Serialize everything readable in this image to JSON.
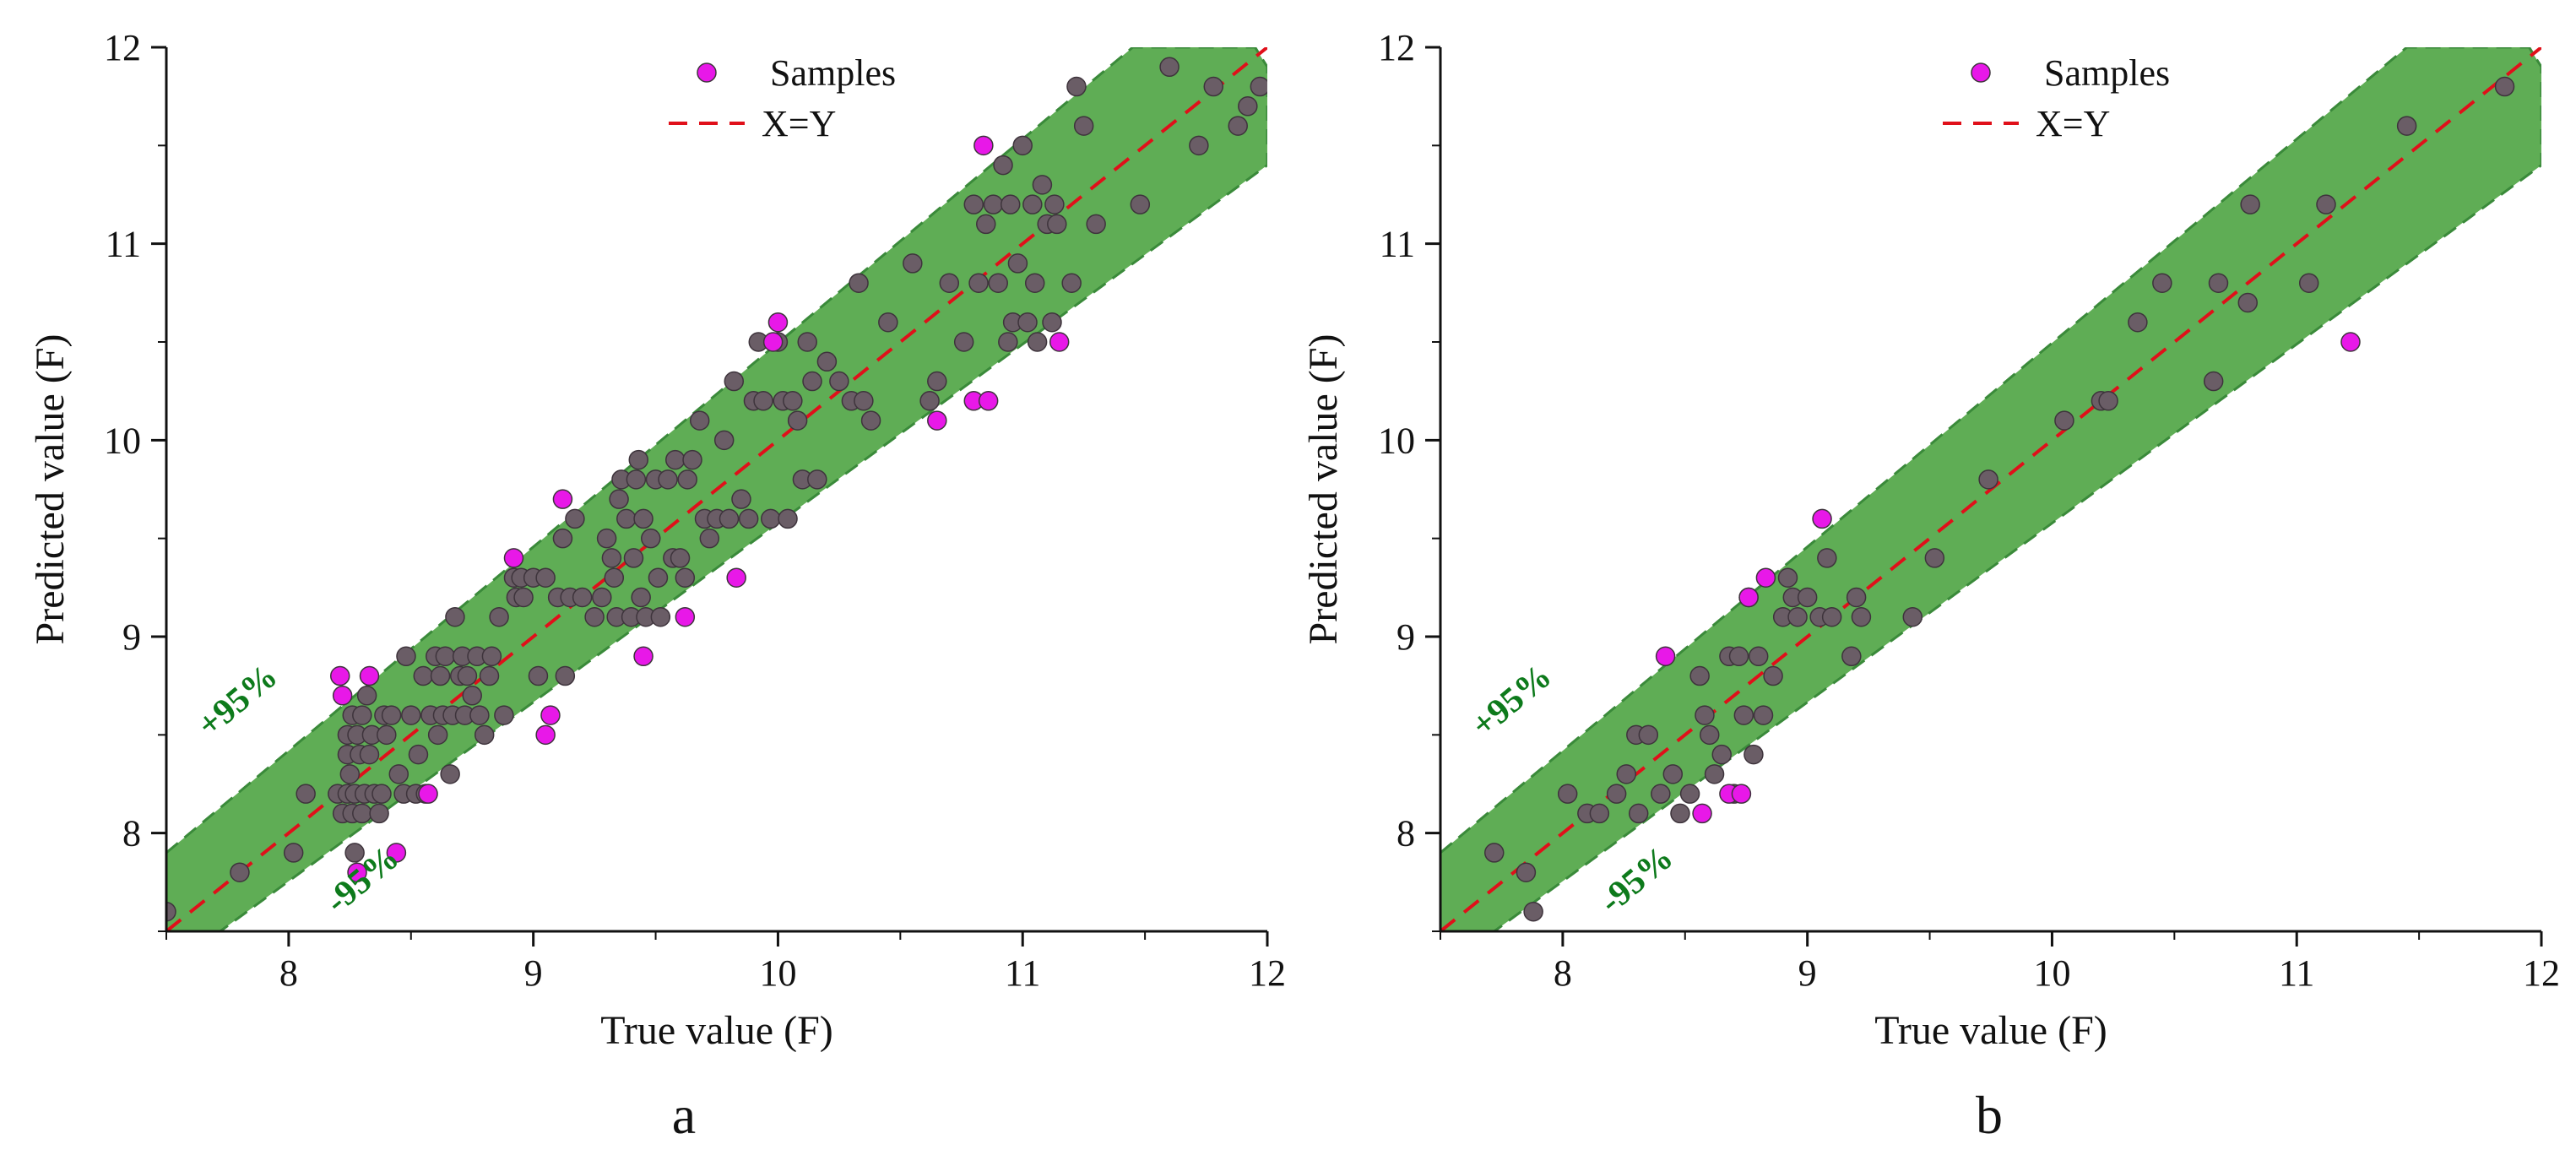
{
  "colors": {
    "band_fill": "#5fad55",
    "band_edge": "#3a8a3a",
    "xy_line": "#e0101a",
    "sample_gray": "#6a5d66",
    "sample_magenta": "#e818e8",
    "band_label": "#0d7a1b"
  },
  "chart_data": [
    {
      "panel_label": "a",
      "type": "scatter",
      "xlabel": "True value (F)",
      "ylabel": "Predicted value (F)",
      "xlim": [
        7.5,
        12
      ],
      "ylim": [
        7.5,
        12
      ],
      "xticks": [
        8,
        9,
        10,
        11,
        12
      ],
      "yticks": [
        8,
        9,
        10,
        11,
        12
      ],
      "xtick_labels": [
        "8",
        "9",
        "10",
        "11",
        "12"
      ],
      "ytick_labels": [
        "8",
        "9",
        "10",
        "11",
        "12"
      ],
      "legend": {
        "samples": "Samples",
        "line": "X=Y",
        "position": "top-center"
      },
      "band_labels": {
        "upper": "+95%",
        "lower": "-95%"
      },
      "band": {
        "upper": [
          [
            7.5,
            7.9
          ],
          [
            11.45,
            12.0
          ],
          [
            11.95,
            12.0
          ],
          [
            12.0,
            11.9
          ],
          [
            12.0,
            11.4
          ]
        ],
        "lower": [
          [
            7.5,
            7.5
          ],
          [
            7.72,
            7.5
          ],
          [
            12.0,
            11.4
          ]
        ]
      },
      "line": [
        [
          7.5,
          7.5
        ],
        [
          12.0,
          12.0
        ]
      ],
      "samples_inside": [
        [
          7.5,
          7.6
        ],
        [
          7.8,
          7.8
        ],
        [
          8.02,
          7.9
        ],
        [
          8.07,
          8.2
        ],
        [
          8.2,
          8.2
        ],
        [
          8.22,
          8.1
        ],
        [
          8.24,
          8.2
        ],
        [
          8.24,
          8.4
        ],
        [
          8.24,
          8.5
        ],
        [
          8.25,
          8.3
        ],
        [
          8.26,
          8.1
        ],
        [
          8.26,
          8.6
        ],
        [
          8.27,
          7.9
        ],
        [
          8.27,
          8.2
        ],
        [
          8.28,
          8.5
        ],
        [
          8.29,
          8.4
        ],
        [
          8.3,
          8.1
        ],
        [
          8.3,
          8.6
        ],
        [
          8.31,
          8.2
        ],
        [
          8.32,
          8.7
        ],
        [
          8.33,
          8.4
        ],
        [
          8.34,
          8.5
        ],
        [
          8.35,
          8.2
        ],
        [
          8.37,
          8.1
        ],
        [
          8.38,
          8.2
        ],
        [
          8.39,
          8.6
        ],
        [
          8.4,
          8.5
        ],
        [
          8.42,
          8.6
        ],
        [
          8.45,
          8.3
        ],
        [
          8.47,
          8.2
        ],
        [
          8.48,
          8.9
        ],
        [
          8.5,
          8.6
        ],
        [
          8.52,
          8.2
        ],
        [
          8.53,
          8.4
        ],
        [
          8.55,
          8.8
        ],
        [
          8.56,
          8.2
        ],
        [
          8.58,
          8.6
        ],
        [
          8.6,
          8.9
        ],
        [
          8.61,
          8.5
        ],
        [
          8.62,
          8.8
        ],
        [
          8.63,
          8.6
        ],
        [
          8.64,
          8.9
        ],
        [
          8.66,
          8.3
        ],
        [
          8.67,
          8.6
        ],
        [
          8.68,
          9.1
        ],
        [
          8.7,
          8.8
        ],
        [
          8.71,
          8.9
        ],
        [
          8.72,
          8.6
        ],
        [
          8.73,
          8.8
        ],
        [
          8.75,
          8.7
        ],
        [
          8.77,
          8.9
        ],
        [
          8.78,
          8.6
        ],
        [
          8.8,
          8.5
        ],
        [
          8.82,
          8.8
        ],
        [
          8.83,
          8.9
        ],
        [
          8.86,
          9.1
        ],
        [
          8.88,
          8.6
        ],
        [
          8.92,
          9.3
        ],
        [
          8.93,
          9.2
        ],
        [
          8.95,
          9.3
        ],
        [
          8.96,
          9.2
        ],
        [
          9.0,
          9.3
        ],
        [
          9.02,
          8.8
        ],
        [
          9.05,
          9.3
        ],
        [
          9.1,
          9.2
        ],
        [
          9.12,
          9.5
        ],
        [
          9.13,
          8.8
        ],
        [
          9.15,
          9.2
        ],
        [
          9.17,
          9.6
        ],
        [
          9.2,
          9.2
        ],
        [
          9.25,
          9.1
        ],
        [
          9.28,
          9.2
        ],
        [
          9.3,
          9.5
        ],
        [
          9.32,
          9.4
        ],
        [
          9.33,
          9.3
        ],
        [
          9.34,
          9.1
        ],
        [
          9.35,
          9.7
        ],
        [
          9.36,
          9.8
        ],
        [
          9.38,
          9.6
        ],
        [
          9.4,
          9.1
        ],
        [
          9.41,
          9.4
        ],
        [
          9.42,
          9.8
        ],
        [
          9.43,
          9.9
        ],
        [
          9.44,
          9.2
        ],
        [
          9.45,
          9.6
        ],
        [
          9.46,
          9.1
        ],
        [
          9.48,
          9.5
        ],
        [
          9.5,
          9.8
        ],
        [
          9.51,
          9.3
        ],
        [
          9.52,
          9.1
        ],
        [
          9.55,
          9.8
        ],
        [
          9.57,
          9.4
        ],
        [
          9.58,
          9.9
        ],
        [
          9.6,
          9.4
        ],
        [
          9.62,
          9.3
        ],
        [
          9.63,
          9.8
        ],
        [
          9.65,
          9.9
        ],
        [
          9.68,
          10.1
        ],
        [
          9.7,
          9.6
        ],
        [
          9.72,
          9.5
        ],
        [
          9.75,
          9.6
        ],
        [
          9.78,
          10.0
        ],
        [
          9.8,
          9.6
        ],
        [
          9.82,
          10.3
        ],
        [
          9.85,
          9.7
        ],
        [
          9.88,
          9.6
        ],
        [
          9.9,
          10.2
        ],
        [
          9.92,
          10.5
        ],
        [
          9.94,
          10.2
        ],
        [
          9.97,
          9.6
        ],
        [
          10.0,
          10.5
        ],
        [
          10.02,
          10.2
        ],
        [
          10.04,
          9.6
        ],
        [
          10.06,
          10.2
        ],
        [
          10.08,
          10.1
        ],
        [
          10.1,
          9.8
        ],
        [
          10.12,
          10.5
        ],
        [
          10.14,
          10.3
        ],
        [
          10.16,
          9.8
        ],
        [
          10.2,
          10.4
        ],
        [
          10.25,
          10.3
        ],
        [
          10.3,
          10.2
        ],
        [
          10.33,
          10.8
        ],
        [
          10.35,
          10.2
        ],
        [
          10.38,
          10.1
        ],
        [
          10.45,
          10.6
        ],
        [
          10.55,
          10.9
        ],
        [
          10.62,
          10.2
        ],
        [
          10.65,
          10.3
        ],
        [
          10.7,
          10.8
        ],
        [
          10.76,
          10.5
        ],
        [
          10.8,
          11.2
        ],
        [
          10.82,
          10.8
        ],
        [
          10.85,
          11.1
        ],
        [
          10.88,
          11.2
        ],
        [
          10.9,
          10.8
        ],
        [
          10.92,
          11.4
        ],
        [
          10.94,
          10.5
        ],
        [
          10.95,
          11.2
        ],
        [
          10.96,
          10.6
        ],
        [
          10.98,
          10.9
        ],
        [
          11.0,
          11.5
        ],
        [
          11.02,
          10.6
        ],
        [
          11.04,
          11.2
        ],
        [
          11.05,
          10.8
        ],
        [
          11.06,
          10.5
        ],
        [
          11.08,
          11.3
        ],
        [
          11.1,
          11.1
        ],
        [
          11.12,
          10.6
        ],
        [
          11.13,
          11.2
        ],
        [
          11.14,
          11.1
        ],
        [
          11.2,
          10.8
        ],
        [
          11.22,
          11.8
        ],
        [
          11.25,
          11.6
        ],
        [
          11.3,
          11.1
        ],
        [
          11.48,
          11.2
        ],
        [
          11.6,
          11.9
        ],
        [
          11.72,
          11.5
        ],
        [
          11.78,
          11.8
        ],
        [
          11.88,
          11.6
        ],
        [
          11.92,
          11.7
        ],
        [
          11.97,
          11.8
        ]
      ],
      "samples_outside": [
        [
          8.21,
          8.8
        ],
        [
          8.22,
          8.7
        ],
        [
          8.28,
          7.8
        ],
        [
          8.33,
          8.8
        ],
        [
          8.44,
          7.9
        ],
        [
          8.57,
          8.2
        ],
        [
          8.92,
          9.4
        ],
        [
          9.05,
          8.5
        ],
        [
          9.07,
          8.6
        ],
        [
          9.12,
          9.7
        ],
        [
          9.45,
          8.9
        ],
        [
          9.62,
          9.1
        ],
        [
          9.83,
          9.3
        ],
        [
          9.98,
          10.5
        ],
        [
          10.0,
          10.6
        ],
        [
          10.65,
          10.1
        ],
        [
          10.8,
          10.2
        ],
        [
          10.86,
          10.2
        ],
        [
          10.84,
          11.5
        ],
        [
          11.15,
          10.5
        ]
      ]
    },
    {
      "panel_label": "b",
      "type": "scatter",
      "xlabel": "True value (F)",
      "ylabel": "Predicted value (F)",
      "xlim": [
        7.5,
        12
      ],
      "ylim": [
        7.5,
        12
      ],
      "xticks": [
        8,
        9,
        10,
        11,
        12
      ],
      "yticks": [
        8,
        9,
        10,
        11,
        12
      ],
      "xtick_labels": [
        "8",
        "9",
        "10",
        "11",
        "12"
      ],
      "ytick_labels": [
        "8",
        "9",
        "10",
        "11",
        "12"
      ],
      "legend": {
        "samples": "Samples",
        "line": "X=Y",
        "position": "top-center"
      },
      "band_labels": {
        "upper": "+95%",
        "lower": "-95%"
      },
      "band": {
        "upper": [
          [
            7.5,
            7.9
          ],
          [
            11.45,
            12.0
          ],
          [
            11.95,
            12.0
          ],
          [
            12.0,
            11.9
          ],
          [
            12.0,
            11.4
          ]
        ],
        "lower": [
          [
            7.5,
            7.5
          ],
          [
            7.72,
            7.5
          ],
          [
            12.0,
            11.4
          ]
        ]
      },
      "line": [
        [
          7.5,
          7.5
        ],
        [
          12.0,
          12.0
        ]
      ],
      "samples_inside": [
        [
          7.72,
          7.9
        ],
        [
          7.85,
          7.8
        ],
        [
          7.88,
          7.6
        ],
        [
          8.02,
          8.2
        ],
        [
          8.1,
          8.1
        ],
        [
          8.15,
          8.1
        ],
        [
          8.22,
          8.2
        ],
        [
          8.26,
          8.3
        ],
        [
          8.3,
          8.5
        ],
        [
          8.31,
          8.1
        ],
        [
          8.35,
          8.5
        ],
        [
          8.4,
          8.2
        ],
        [
          8.45,
          8.3
        ],
        [
          8.48,
          8.1
        ],
        [
          8.52,
          8.2
        ],
        [
          8.56,
          8.8
        ],
        [
          8.58,
          8.6
        ],
        [
          8.6,
          8.5
        ],
        [
          8.62,
          8.3
        ],
        [
          8.65,
          8.4
        ],
        [
          8.68,
          8.9
        ],
        [
          8.7,
          8.2
        ],
        [
          8.72,
          8.9
        ],
        [
          8.74,
          8.6
        ],
        [
          8.76,
          9.2
        ],
        [
          8.78,
          8.4
        ],
        [
          8.8,
          8.9
        ],
        [
          8.82,
          8.6
        ],
        [
          8.86,
          8.8
        ],
        [
          8.9,
          9.1
        ],
        [
          8.92,
          9.3
        ],
        [
          8.94,
          9.2
        ],
        [
          8.96,
          9.1
        ],
        [
          9.0,
          9.2
        ],
        [
          9.05,
          9.1
        ],
        [
          9.08,
          9.4
        ],
        [
          9.1,
          9.1
        ],
        [
          9.18,
          8.9
        ],
        [
          9.2,
          9.2
        ],
        [
          9.22,
          9.1
        ],
        [
          9.43,
          9.1
        ],
        [
          9.52,
          9.4
        ],
        [
          9.74,
          9.8
        ],
        [
          10.05,
          10.1
        ],
        [
          10.2,
          10.2
        ],
        [
          10.23,
          10.2
        ],
        [
          10.35,
          10.6
        ],
        [
          10.45,
          10.8
        ],
        [
          10.66,
          10.3
        ],
        [
          10.68,
          10.8
        ],
        [
          10.8,
          10.7
        ],
        [
          10.81,
          11.2
        ],
        [
          11.05,
          10.8
        ],
        [
          11.12,
          11.2
        ],
        [
          11.45,
          11.6
        ],
        [
          11.85,
          11.8
        ]
      ],
      "samples_outside": [
        [
          8.42,
          8.9
        ],
        [
          8.57,
          8.1
        ],
        [
          8.68,
          8.2
        ],
        [
          8.73,
          8.2
        ],
        [
          8.76,
          9.2
        ],
        [
          8.83,
          9.3
        ],
        [
          9.06,
          9.6
        ],
        [
          11.22,
          10.5
        ]
      ]
    }
  ]
}
